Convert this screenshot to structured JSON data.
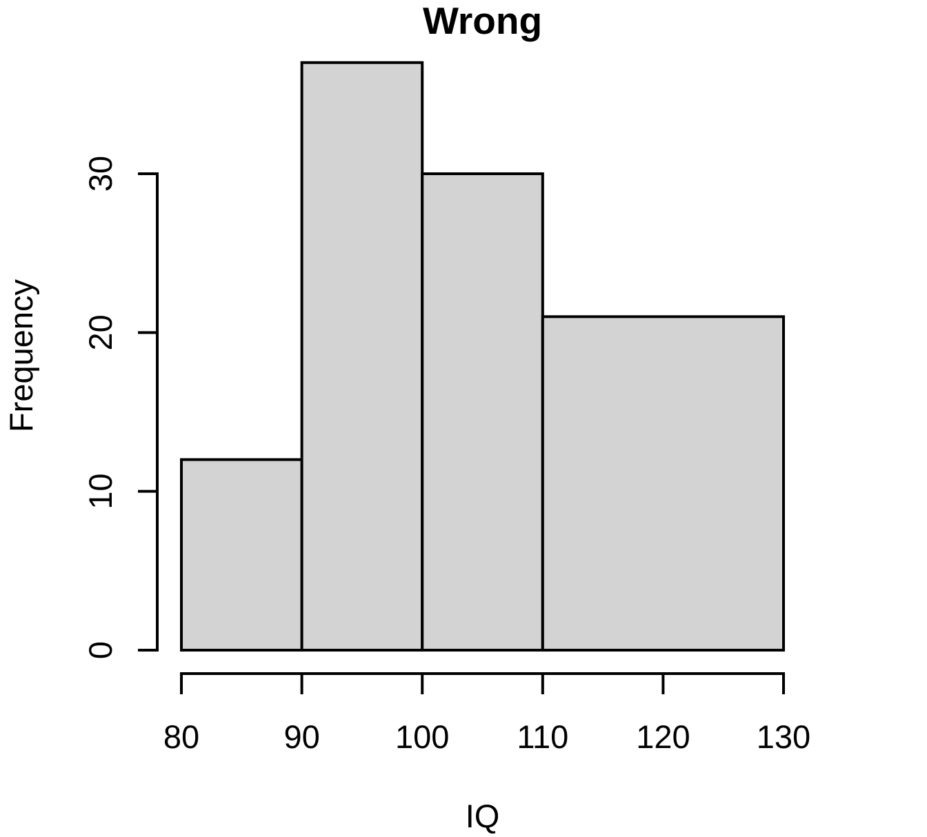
{
  "chart_data": {
    "type": "histogram",
    "title": "Wrong",
    "xlabel": "IQ",
    "ylabel": "Frequency",
    "bins": [
      {
        "start": 80,
        "end": 90,
        "count": 12
      },
      {
        "start": 90,
        "end": 100,
        "count": 37
      },
      {
        "start": 100,
        "end": 110,
        "count": 30
      },
      {
        "start": 110,
        "end": 130,
        "count": 21
      }
    ],
    "x_ticks": [
      {
        "value": 80,
        "label": "80"
      },
      {
        "value": 90,
        "label": "90"
      },
      {
        "value": 100,
        "label": "100"
      },
      {
        "value": 110,
        "label": "110"
      },
      {
        "value": 120,
        "label": "120"
      },
      {
        "value": 130,
        "label": "130"
      }
    ],
    "y_ticks": [
      {
        "value": 0,
        "label": "0"
      },
      {
        "value": 10,
        "label": "10"
      },
      {
        "value": 20,
        "label": "20"
      },
      {
        "value": 30,
        "label": "30"
      }
    ],
    "xlim": [
      80,
      130
    ],
    "y_axis_range": [
      0,
      30
    ],
    "grid": false,
    "legend": null,
    "colors": {
      "bar_fill": "#d3d3d3",
      "bar_border": "#000000",
      "axis": "#000000",
      "text": "#000000",
      "background": "#ffffff"
    }
  }
}
